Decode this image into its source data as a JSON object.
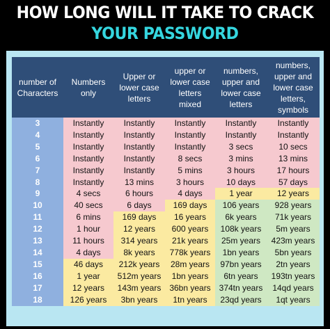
{
  "title_line1": "HOW LONG WILL IT TAKE TO CRACK",
  "title_line2": "YOUR PASSWORD",
  "colors": {
    "title": "#ffffff",
    "subtitle": "#35d6df",
    "header_bg": "#2f4e78",
    "instant": "#f6c9cf",
    "medium": "#fbeaa1",
    "strong": "#cfe8c3",
    "numcol": "#8fb0df"
  },
  "headers": [
    "number of Characters",
    "Numbers only",
    "Upper or lower case letters",
    "upper or lower case letters mixed",
    "numbers, upper and lower case letters",
    "numbers, upper and lower case letters, symbols"
  ],
  "rows": [
    {
      "n": "3",
      "v": [
        "Instantly",
        "Instantly",
        "Instantly",
        "Instantly",
        "Instantly"
      ]
    },
    {
      "n": "4",
      "v": [
        "Instantly",
        "Instantly",
        "Instantly",
        "Instantly",
        "Instantly"
      ]
    },
    {
      "n": "5",
      "v": [
        "Instantly",
        "Instantly",
        "Instantly",
        "3 secs",
        "10 secs"
      ]
    },
    {
      "n": "6",
      "v": [
        "Instantly",
        "Instantly",
        "8 secs",
        "3 mins",
        "13 mins"
      ]
    },
    {
      "n": "7",
      "v": [
        "Instantly",
        "Instantly",
        "5 mins",
        "3 hours",
        "17 hours"
      ]
    },
    {
      "n": "8",
      "v": [
        "Instantly",
        "13 mins",
        "3 hours",
        "10 days",
        "57 days"
      ]
    },
    {
      "n": "9",
      "v": [
        "4 secs",
        "6 hours",
        "4 days",
        "1 year",
        "12 years"
      ]
    },
    {
      "n": "10",
      "v": [
        "40 secs",
        "6 days",
        "169 days",
        "106 years",
        "928 years"
      ]
    },
    {
      "n": "11",
      "v": [
        "6 mins",
        "169 days",
        "16 years",
        "6k years",
        "71k years"
      ]
    },
    {
      "n": "12",
      "v": [
        "1 hour",
        "12 years",
        "600 years",
        "108k years",
        "5m years"
      ]
    },
    {
      "n": "13",
      "v": [
        "11 hours",
        "314 years",
        "21k years",
        "25m years",
        "423m years"
      ]
    },
    {
      "n": "14",
      "v": [
        "4 days",
        "8k years",
        "778k years",
        "1bn years",
        "5bn years"
      ]
    },
    {
      "n": "15",
      "v": [
        "46 days",
        "212k years",
        "28m years",
        "97bn years",
        "2tn years"
      ]
    },
    {
      "n": "16",
      "v": [
        "1 year",
        "512m years",
        "1bn years",
        "6tn years",
        "193tn years"
      ]
    },
    {
      "n": "17",
      "v": [
        "12 years",
        "143m years",
        "36bn years",
        "374tn years",
        "14qd years"
      ]
    },
    {
      "n": "18",
      "v": [
        "126 years",
        "3bn years",
        "1tn years",
        "23qd years",
        "1qt years"
      ]
    }
  ]
}
